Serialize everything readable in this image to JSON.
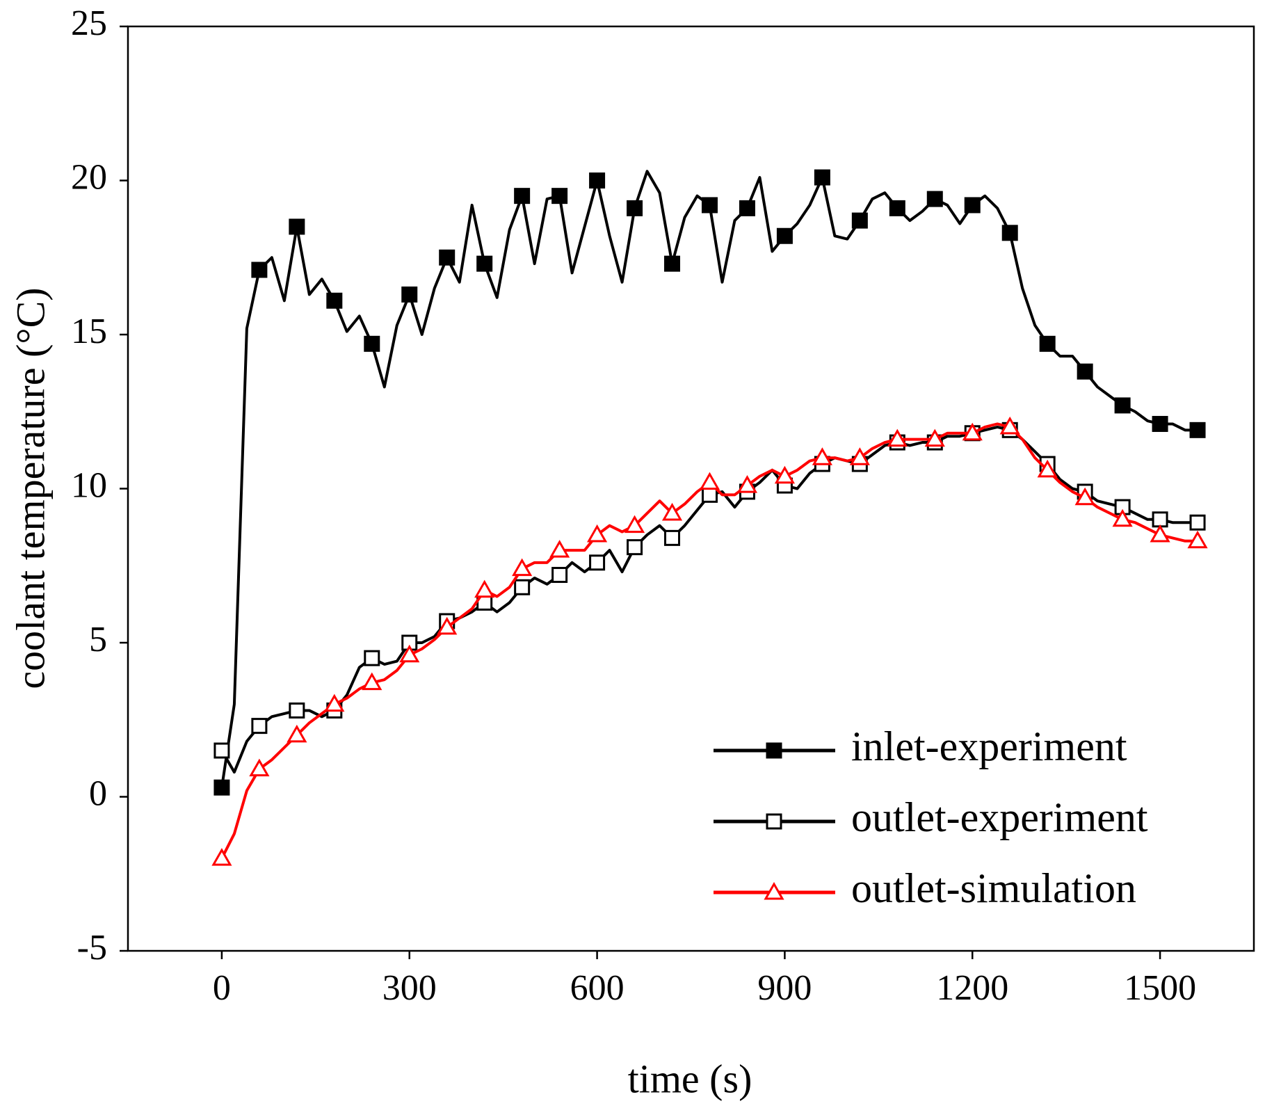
{
  "chart_data": {
    "type": "line",
    "x_label": "time (s)",
    "y_label": "coolant temperature (°C)",
    "xlim": [
      -150,
      1650
    ],
    "ylim": [
      -5,
      25
    ],
    "xticks": [
      0,
      300,
      600,
      900,
      1200,
      1500
    ],
    "yticks": [
      -5,
      0,
      5,
      10,
      15,
      20,
      25
    ],
    "legend": "lower right",
    "marker_every": 3,
    "x": [
      0,
      20,
      40,
      60,
      80,
      100,
      120,
      140,
      160,
      180,
      200,
      220,
      240,
      260,
      280,
      300,
      320,
      340,
      360,
      380,
      400,
      420,
      440,
      460,
      480,
      500,
      520,
      540,
      560,
      580,
      600,
      620,
      640,
      660,
      680,
      700,
      720,
      740,
      760,
      780,
      800,
      820,
      840,
      860,
      880,
      900,
      920,
      940,
      960,
      980,
      1000,
      1020,
      1040,
      1060,
      1080,
      1100,
      1120,
      1140,
      1160,
      1180,
      1200,
      1220,
      1240,
      1260,
      1280,
      1300,
      1320,
      1340,
      1360,
      1380,
      1400,
      1420,
      1440,
      1460,
      1480,
      1500,
      1520,
      1540,
      1560
    ],
    "series": [
      {
        "name": "inlet-experiment",
        "color": "#000000",
        "marker": "square-filled",
        "values": [
          0.3,
          3,
          15.2,
          17.1,
          17.5,
          16.1,
          18.5,
          16.3,
          16.8,
          16.1,
          15.1,
          15.6,
          14.7,
          13.3,
          15.3,
          16.3,
          15.0,
          16.5,
          17.5,
          16.7,
          19.2,
          17.3,
          16.2,
          18.4,
          19.5,
          17.3,
          19.4,
          19.5,
          17.0,
          18.5,
          20.0,
          18.2,
          16.7,
          19.1,
          20.3,
          19.6,
          17.3,
          18.8,
          19.5,
          19.2,
          16.7,
          18.7,
          19.1,
          20.1,
          17.7,
          18.2,
          18.6,
          19.2,
          20.1,
          18.2,
          18.1,
          18.7,
          19.4,
          19.6,
          19.1,
          18.7,
          19.0,
          19.4,
          19.2,
          18.6,
          19.2,
          19.5,
          19.1,
          18.3,
          16.5,
          15.3,
          14.7,
          14.3,
          14.3,
          13.8,
          13.3,
          13.0,
          12.7,
          12.5,
          12.2,
          12.1,
          12.1,
          11.9,
          11.9
        ]
      },
      {
        "name": "outlet-experiment",
        "color": "#000000",
        "marker": "square-open",
        "values": [
          1.5,
          0.8,
          1.8,
          2.3,
          2.6,
          2.7,
          2.8,
          2.8,
          2.6,
          2.8,
          3.3,
          4.2,
          4.5,
          4.3,
          4.4,
          5.0,
          5.0,
          5.2,
          5.7,
          5.8,
          6.0,
          6.3,
          6.0,
          6.3,
          6.8,
          7.1,
          6.9,
          7.2,
          7.6,
          7.3,
          7.6,
          8.0,
          7.3,
          8.1,
          8.5,
          8.8,
          8.4,
          8.8,
          9.3,
          9.8,
          9.9,
          9.4,
          9.9,
          10.2,
          10.6,
          10.1,
          10.0,
          10.5,
          10.8,
          11.0,
          10.9,
          10.8,
          11.1,
          11.4,
          11.5,
          11.4,
          11.5,
          11.5,
          11.7,
          11.7,
          11.8,
          11.9,
          12.0,
          11.9,
          11.6,
          11.2,
          10.8,
          10.3,
          10.0,
          9.9,
          9.6,
          9.5,
          9.4,
          9.2,
          9.0,
          9.0,
          8.9,
          8.9,
          8.9
        ]
      },
      {
        "name": "outlet-simulation",
        "color": "#ff0000",
        "marker": "triangle-open",
        "values": [
          -2.0,
          -1.2,
          0.2,
          0.9,
          1.2,
          1.6,
          2.0,
          2.4,
          2.7,
          3.0,
          3.2,
          3.5,
          3.7,
          3.8,
          4.1,
          4.6,
          4.8,
          5.1,
          5.5,
          5.8,
          6.1,
          6.7,
          6.5,
          6.8,
          7.4,
          7.6,
          7.6,
          8.0,
          8.0,
          8.0,
          8.5,
          8.8,
          8.6,
          8.8,
          9.2,
          9.6,
          9.2,
          9.5,
          9.9,
          10.2,
          9.8,
          9.8,
          10.1,
          10.4,
          10.6,
          10.4,
          10.6,
          10.9,
          11.0,
          11.0,
          10.9,
          11.0,
          11.3,
          11.5,
          11.6,
          11.6,
          11.6,
          11.6,
          11.8,
          11.8,
          11.8,
          12.0,
          12.1,
          12.0,
          11.6,
          11.0,
          10.6,
          10.2,
          9.9,
          9.7,
          9.4,
          9.2,
          9.0,
          8.9,
          8.7,
          8.5,
          8.4,
          8.3,
          8.3
        ]
      }
    ]
  }
}
